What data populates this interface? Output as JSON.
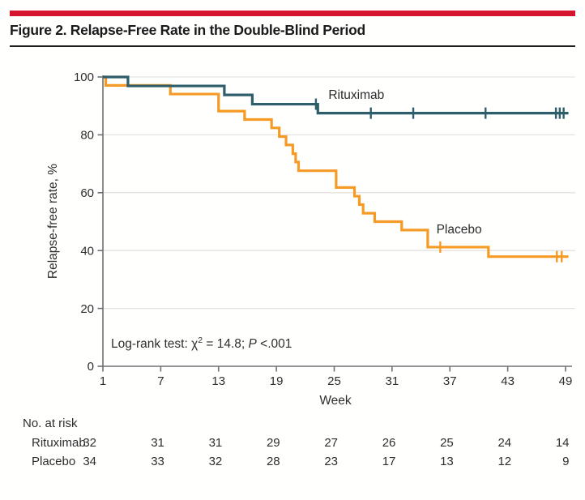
{
  "figure": {
    "title": "Figure 2. Relapse-Free Rate in the Double-Blind Period"
  },
  "colors": {
    "accent_red": "#D7142F",
    "rituximab": "#2E5E6A",
    "placebo": "#F59B25",
    "grid": "#E4E3E1",
    "axis": "#6F7073",
    "text": "#2e2e2e"
  },
  "chart_data": {
    "type": "line",
    "subtype": "kaplan-meier-step",
    "title": "",
    "xlabel": "Week",
    "ylabel": "Relapse-free rate, %",
    "x_ticks": [
      1,
      7,
      13,
      19,
      25,
      31,
      37,
      43,
      49
    ],
    "y_ticks": [
      0,
      20,
      40,
      60,
      80,
      100
    ],
    "xlim": [
      1,
      49
    ],
    "ylim": [
      0,
      100
    ],
    "grid": "horizontal",
    "annotation": {
      "prefix": "Log-rank test: χ",
      "sup": "2",
      "eq": " = 14.8; ",
      "italic": "P",
      "suffix": " <.001"
    },
    "series": [
      {
        "name": "Placebo",
        "color_key": "placebo",
        "label_anchor": {
          "week": 35.6,
          "pct": 45.9
        },
        "steps": [
          [
            1,
            100
          ],
          [
            1.3,
            97.1
          ],
          [
            8,
            94.1
          ],
          [
            13,
            88.2
          ],
          [
            15.7,
            85.3
          ],
          [
            18.5,
            82.4
          ],
          [
            19.3,
            79.4
          ],
          [
            20,
            76.5
          ],
          [
            20.7,
            73.5
          ],
          [
            21,
            70.6
          ],
          [
            21.3,
            67.6
          ],
          [
            25.2,
            61.8
          ],
          [
            27.1,
            58.8
          ],
          [
            27.6,
            55.9
          ],
          [
            28,
            52.9
          ],
          [
            29.2,
            50.0
          ],
          [
            32,
            47.1
          ],
          [
            34.7,
            41.2
          ],
          [
            41,
            37.9
          ]
        ],
        "end_week": 49.3,
        "censors": [
          {
            "week": 36.0,
            "pct": 41.2
          },
          {
            "week": 48.1,
            "pct": 37.9
          },
          {
            "week": 48.6,
            "pct": 37.9
          }
        ]
      },
      {
        "name": "Rituximab",
        "color_key": "rituximab",
        "label_anchor": {
          "week": 24.4,
          "pct": 92.4
        },
        "steps": [
          [
            1,
            100
          ],
          [
            3.6,
            96.9
          ],
          [
            13.6,
            93.8
          ],
          [
            16.5,
            90.6
          ],
          [
            23.3,
            87.5
          ]
        ],
        "end_week": 49.3,
        "censors": [
          {
            "week": 23.1,
            "pct": 90.6
          },
          {
            "week": 28.8,
            "pct": 87.5
          },
          {
            "week": 33.2,
            "pct": 87.5
          },
          {
            "week": 40.7,
            "pct": 87.5
          },
          {
            "week": 48.0,
            "pct": 87.5
          },
          {
            "week": 48.4,
            "pct": 87.5
          },
          {
            "week": 48.8,
            "pct": 87.5
          }
        ]
      }
    ]
  },
  "risk_table": {
    "header": "No. at risk",
    "weeks": [
      1,
      7,
      13,
      19,
      25,
      31,
      37,
      43,
      49
    ],
    "rows": [
      {
        "label": "Rituximab",
        "values": [
          32,
          31,
          31,
          29,
          27,
          26,
          25,
          24,
          14
        ]
      },
      {
        "label": "Placebo",
        "values": [
          34,
          33,
          32,
          28,
          23,
          17,
          13,
          12,
          9
        ]
      }
    ]
  }
}
